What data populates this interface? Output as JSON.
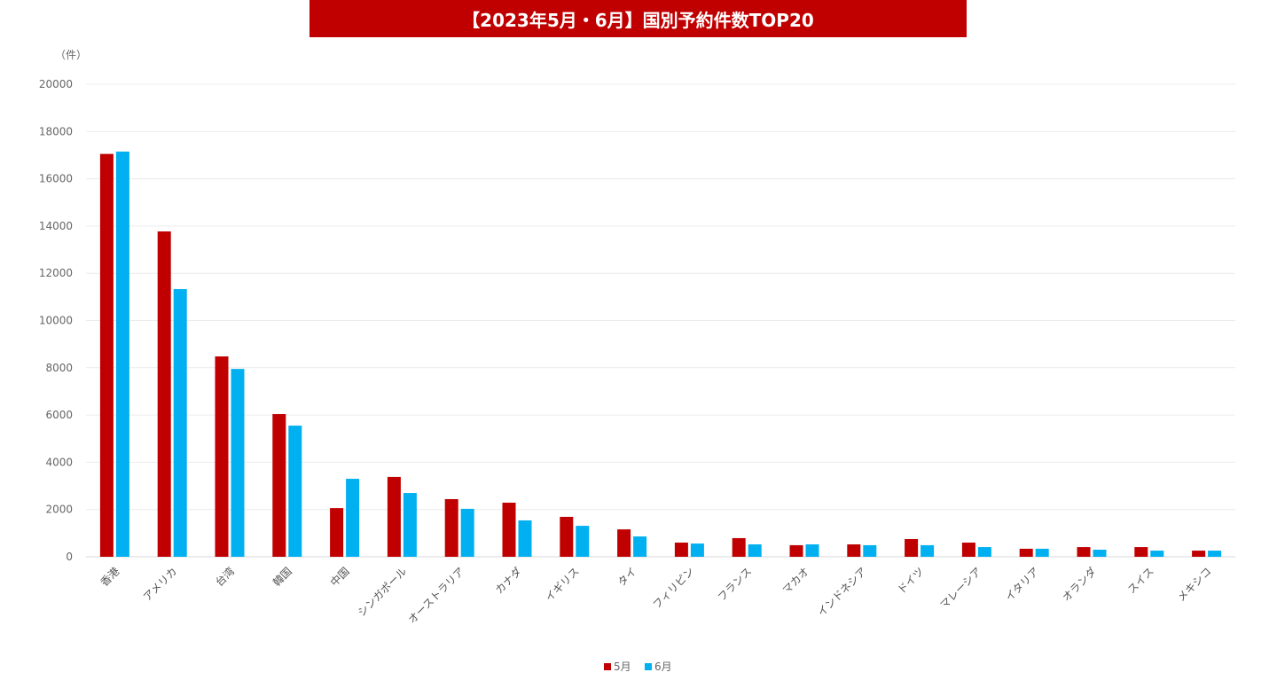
{
  "chart_data": {
    "type": "bar",
    "title": "【2023年5月・6月】国別予約件数TOP20",
    "ylabel": "（件）",
    "xlabel": "",
    "ylim": [
      0,
      20000
    ],
    "yticks": [
      0,
      2000,
      4000,
      6000,
      8000,
      10000,
      12000,
      14000,
      16000,
      18000,
      20000
    ],
    "grid": true,
    "legend": "bottom",
    "categories": [
      "香港",
      "アメリカ",
      "台湾",
      "韓国",
      "中国",
      "シンガポール",
      "オーストラリア",
      "カナダ",
      "イギリス",
      "タイ",
      "フィリピン",
      "フランス",
      "マカオ",
      "インドネシア",
      "ドイツ",
      "マレーシア",
      "イタリア",
      "オランダ",
      "スイス",
      "メキシコ"
    ],
    "series": [
      {
        "name": "5月",
        "color": "#c00000",
        "values": [
          17050,
          13770,
          8480,
          6040,
          2060,
          3380,
          2440,
          2290,
          1690,
          1160,
          600,
          790,
          490,
          525,
          750,
          600,
          340,
          410,
          410,
          260
        ]
      },
      {
        "name": "6月",
        "color": "#00b0f0",
        "values": [
          17150,
          11330,
          7950,
          5550,
          3300,
          2700,
          2030,
          1540,
          1310,
          860,
          560,
          525,
          525,
          490,
          490,
          410,
          340,
          300,
          260,
          260
        ]
      }
    ]
  }
}
